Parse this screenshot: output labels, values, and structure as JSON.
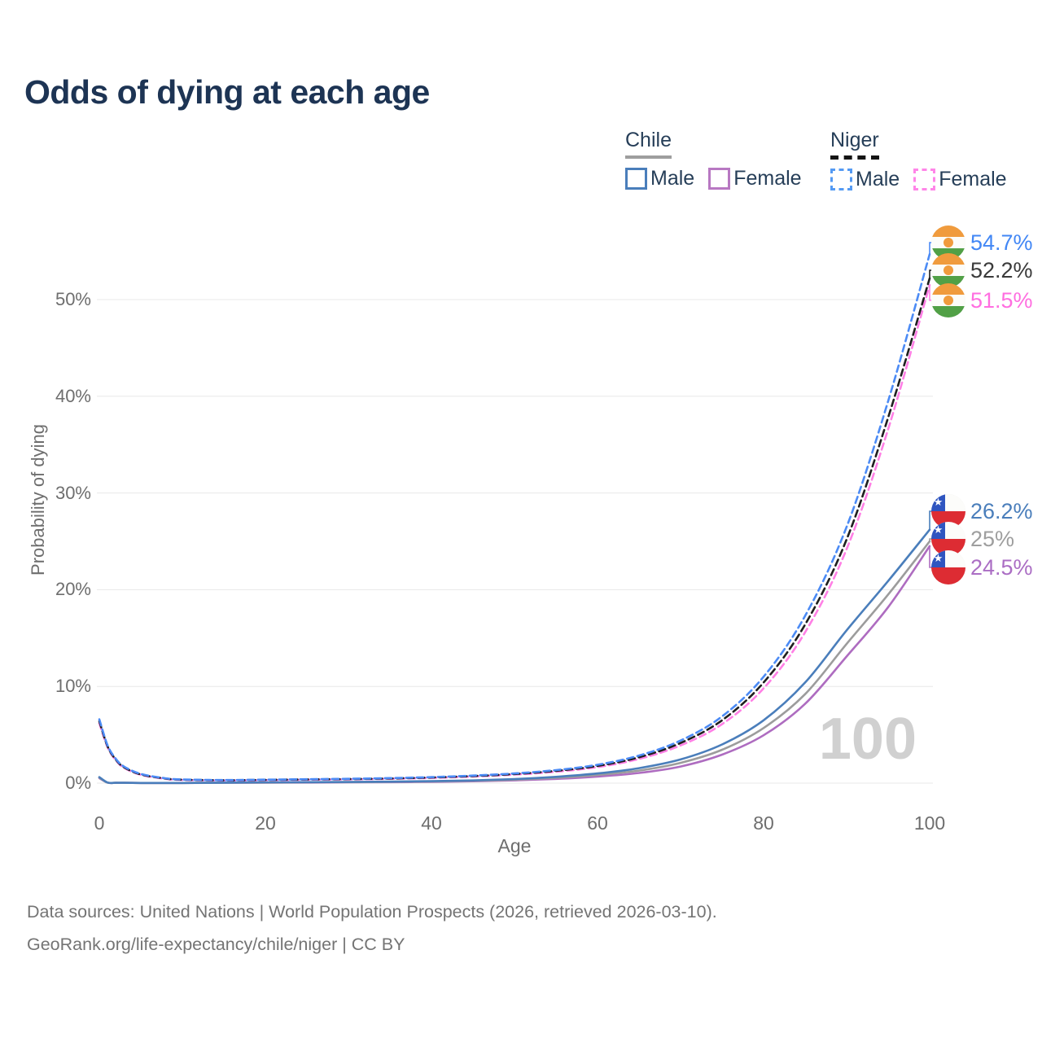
{
  "title": "Odds of dying at each age",
  "watermark": "100",
  "legend": {
    "groups": [
      {
        "country": "Chile",
        "line_style": "solid",
        "underline_color": "#9e9e9e",
        "items": [
          {
            "label": "Male",
            "color": "#4a7ebb"
          },
          {
            "label": "Female",
            "color": "#b878c2"
          }
        ]
      },
      {
        "country": "Niger",
        "line_style": "dashed",
        "underline_color": "#141414",
        "items": [
          {
            "label": "Male",
            "color": "#549af3"
          },
          {
            "label": "Female",
            "color": "#ff85e8"
          }
        ]
      }
    ]
  },
  "chart_data": {
    "type": "line",
    "title": "Odds of dying at each age",
    "xlabel": "Age",
    "ylabel": "Probability of dying",
    "xlim": [
      0,
      100
    ],
    "ylim": [
      0,
      55
    ],
    "grid": true,
    "x_tick_values": [
      0,
      20,
      40,
      60,
      80,
      100
    ],
    "x_tick_labels": [
      "0",
      "20",
      "40",
      "60",
      "80",
      "100"
    ],
    "y_tick_values": [
      0,
      10,
      20,
      30,
      40,
      50
    ],
    "y_tick_labels": [
      "0%",
      "10%",
      "20%",
      "30%",
      "40%",
      "50%"
    ],
    "ages": [
      0,
      1,
      2,
      3,
      5,
      8,
      10,
      15,
      20,
      25,
      30,
      35,
      40,
      45,
      50,
      55,
      60,
      65,
      70,
      75,
      80,
      85,
      90,
      95,
      100
    ],
    "series": [
      {
        "name": "Niger Male",
        "country": "Niger",
        "flag_icon": "niger-flag",
        "dash": true,
        "color": "#4c8bf5",
        "end_label": "54.7%",
        "end_label_color": "#4287f5",
        "values": [
          6.6,
          3.9,
          2.5,
          1.7,
          0.95,
          0.5,
          0.38,
          0.32,
          0.36,
          0.4,
          0.45,
          0.52,
          0.62,
          0.78,
          1.0,
          1.35,
          1.9,
          2.85,
          4.4,
          6.9,
          11.0,
          17.3,
          26.5,
          39.5,
          54.7
        ]
      },
      {
        "name": "Niger Both sexes",
        "country": "Niger",
        "flag_icon": "niger-flag",
        "dash": true,
        "color": "#1f1f1f",
        "end_label": "52.2%",
        "end_label_color": "#3a3a3a",
        "values": [
          6.4,
          3.8,
          2.42,
          1.63,
          0.9,
          0.47,
          0.36,
          0.3,
          0.34,
          0.38,
          0.42,
          0.48,
          0.58,
          0.73,
          0.94,
          1.27,
          1.78,
          2.68,
          4.15,
          6.5,
          10.4,
          16.4,
          25.2,
          37.8,
          52.2
        ]
      },
      {
        "name": "Niger Female",
        "country": "Niger",
        "flag_icon": "niger-flag",
        "dash": true,
        "color": "#ff80e5",
        "end_label": "51.5%",
        "end_label_color": "#ff6ee0",
        "values": [
          6.2,
          3.7,
          2.35,
          1.57,
          0.86,
          0.44,
          0.33,
          0.28,
          0.31,
          0.35,
          0.39,
          0.45,
          0.54,
          0.68,
          0.88,
          1.18,
          1.66,
          2.5,
          3.9,
          6.1,
          9.8,
          15.6,
          24.2,
          36.6,
          51.5
        ]
      },
      {
        "name": "Chile Male",
        "country": "Chile",
        "flag_icon": "chile-flag",
        "dash": false,
        "color": "#4a7ebb",
        "end_label": "26.2%",
        "end_label_color": "#4a7ebb",
        "values": [
          0.62,
          0.06,
          0.04,
          0.03,
          0.02,
          0.02,
          0.02,
          0.05,
          0.08,
          0.1,
          0.12,
          0.15,
          0.2,
          0.28,
          0.42,
          0.65,
          1.0,
          1.55,
          2.45,
          4.0,
          6.5,
          10.4,
          15.8,
          20.9,
          26.2
        ]
      },
      {
        "name": "Chile Both sexes",
        "country": "Chile",
        "flag_icon": "chile-flag",
        "dash": false,
        "color": "#9c9c9c",
        "end_label": "25%",
        "end_label_color": "#9e9e9e",
        "values": [
          0.57,
          0.05,
          0.04,
          0.03,
          0.02,
          0.02,
          0.02,
          0.04,
          0.06,
          0.08,
          0.1,
          0.13,
          0.17,
          0.24,
          0.36,
          0.55,
          0.85,
          1.3,
          2.1,
          3.45,
          5.7,
          9.2,
          14.4,
          19.5,
          25.0
        ]
      },
      {
        "name": "Chile Female",
        "country": "Chile",
        "flag_icon": "chile-flag",
        "dash": false,
        "color": "#ae6cc0",
        "end_label": "24.5%",
        "end_label_color": "#ab6ec4",
        "values": [
          0.52,
          0.05,
          0.03,
          0.03,
          0.02,
          0.02,
          0.02,
          0.03,
          0.04,
          0.06,
          0.08,
          0.1,
          0.13,
          0.19,
          0.29,
          0.44,
          0.68,
          1.05,
          1.72,
          2.95,
          4.95,
          8.2,
          13.1,
          18.2,
          24.5
        ]
      }
    ],
    "legend_position": "top-right"
  },
  "footer": {
    "line1": "Data sources: United Nations | World Population Prospects (2026, retrieved 2026-03-10).",
    "line2": "GeoRank.org/life-expectancy/chile/niger | CC BY"
  }
}
